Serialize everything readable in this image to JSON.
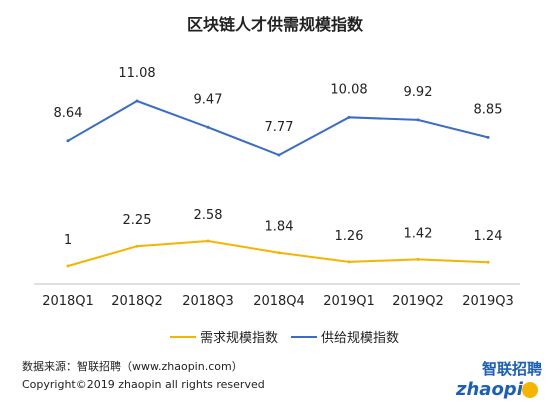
{
  "chart_data": {
    "type": "line",
    "title": "区块链人才供需规模指数",
    "categories": [
      "2018Q1",
      "2018Q2",
      "2018Q3",
      "2018Q4",
      "2019Q1",
      "2019Q2",
      "2019Q3"
    ],
    "series": [
      {
        "name": "需求规模指数",
        "color": "#f5b400",
        "values": [
          1,
          2.25,
          2.58,
          1.84,
          1.26,
          1.42,
          1.24
        ]
      },
      {
        "name": "供给规模指数",
        "color": "#3a6dc5",
        "values": [
          8.64,
          11.08,
          9.47,
          7.77,
          10.08,
          9.92,
          8.85
        ]
      }
    ],
    "legend_position": "bottom"
  },
  "footer": {
    "source": "数据来源：智联招聘（www.zhaopin.com）",
    "copyright": "Copyright©2019 zhaopin all rights reserved"
  },
  "logo": {
    "text_cn": "智联招聘",
    "text_en": "zhaopin.com"
  }
}
